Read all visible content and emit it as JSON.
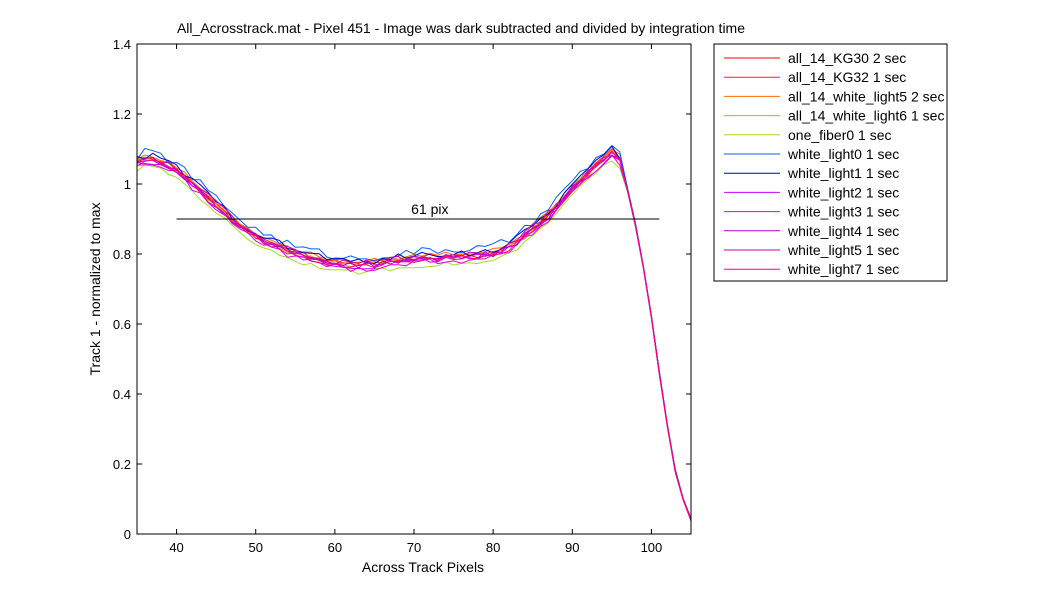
{
  "chart_data": {
    "type": "line",
    "title": "All_Acrosstrack.mat - Pixel 451 - Image was dark subtracted and divided by integration time",
    "xlabel": "Across Track Pixels",
    "ylabel": "Track 1 - normalized to max",
    "xlim": [
      35,
      105
    ],
    "ylim": [
      0,
      1.4
    ],
    "xticks": [
      "40",
      "50",
      "60",
      "70",
      "80",
      "90",
      "100"
    ],
    "yticks": [
      "0",
      "0.2",
      "0.4",
      "0.6",
      "0.8",
      "1",
      "1.2",
      "1.4"
    ],
    "grid": false,
    "legend_position": "outside-right",
    "annotation": {
      "text": "61 pix",
      "x": 72,
      "y": 0.915
    },
    "reference_line": {
      "x": [
        40,
        101
      ],
      "y": [
        0.9,
        0.9
      ]
    },
    "series": [
      {
        "name": "all_14_KG30 2 sec",
        "color": "#ff0000",
        "offset": 0.0,
        "noise": 0.006
      },
      {
        "name": "all_14_KG32 1 sec",
        "color": "#ff2a00",
        "offset": 0.005,
        "noise": 0.006
      },
      {
        "name": "all_14_white_light5 2 sec",
        "color": "#ff6a00",
        "offset": 0.01,
        "noise": 0.006
      },
      {
        "name": "all_14_white_light6 1 sec",
        "color": "#e0a000",
        "offset": 0.0,
        "noise": 0.007
      },
      {
        "name": "one_fiber0 1 sec",
        "color": "#a0e020",
        "offset": -0.02,
        "noise": 0.006
      },
      {
        "name": "white_light0 1 sec",
        "color": "#0060ff",
        "offset": 0.02,
        "noise": 0.012
      },
      {
        "name": "white_light1 1 sec",
        "color": "#0000c0",
        "offset": 0.01,
        "noise": 0.01
      },
      {
        "name": "white_light2 1 sec",
        "color": "#c000ff",
        "offset": -0.005,
        "noise": 0.01
      },
      {
        "name": "white_light3 1 sec",
        "color": "#e000e0",
        "offset": -0.01,
        "noise": 0.01
      },
      {
        "name": "white_light4 1 sec",
        "color": "#b000d0",
        "offset": 0.0,
        "noise": 0.01
      },
      {
        "name": "white_light5 1 sec",
        "color": "#d000b0",
        "offset": 0.005,
        "noise": 0.01
      },
      {
        "name": "white_light7 1 sec",
        "color": "#ff0080",
        "offset": -0.005,
        "noise": 0.008
      }
    ],
    "base_x": [
      35,
      36,
      37,
      38,
      39,
      40,
      41,
      42,
      43,
      44,
      45,
      46,
      47,
      48,
      49,
      50,
      51,
      52,
      53,
      54,
      55,
      56,
      57,
      58,
      59,
      60,
      61,
      62,
      63,
      64,
      65,
      66,
      67,
      68,
      69,
      70,
      71,
      72,
      73,
      74,
      75,
      76,
      77,
      78,
      79,
      80,
      81,
      82,
      83,
      84,
      85,
      86,
      87,
      88,
      89,
      90,
      91,
      92,
      93,
      94,
      95,
      96,
      97,
      98,
      99,
      100,
      101,
      102,
      103,
      104,
      105
    ],
    "base_y": [
      1.06,
      1.07,
      1.07,
      1.06,
      1.05,
      1.04,
      1.02,
      1.0,
      0.98,
      0.96,
      0.94,
      0.92,
      0.9,
      0.88,
      0.865,
      0.85,
      0.84,
      0.83,
      0.82,
      0.81,
      0.8,
      0.795,
      0.79,
      0.785,
      0.78,
      0.775,
      0.77,
      0.768,
      0.768,
      0.77,
      0.772,
      0.775,
      0.778,
      0.78,
      0.782,
      0.785,
      0.787,
      0.79,
      0.79,
      0.792,
      0.792,
      0.793,
      0.793,
      0.795,
      0.797,
      0.8,
      0.81,
      0.82,
      0.835,
      0.85,
      0.87,
      0.89,
      0.91,
      0.935,
      0.96,
      0.99,
      1.01,
      1.03,
      1.05,
      1.07,
      1.09,
      1.07,
      0.98,
      0.88,
      0.76,
      0.62,
      0.46,
      0.31,
      0.18,
      0.1,
      0.04
    ]
  }
}
